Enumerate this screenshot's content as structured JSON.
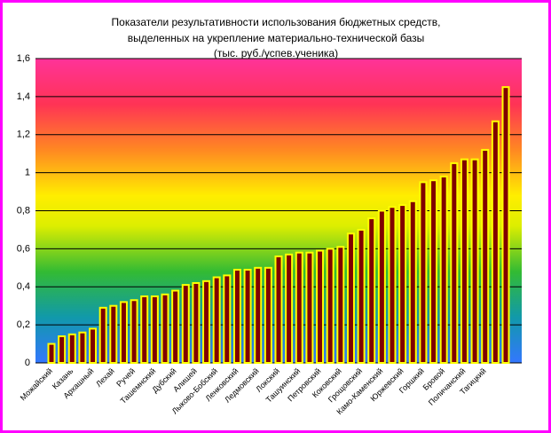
{
  "chart_data": {
    "type": "bar",
    "title": [
      "Показатели результативности использования бюджетных средств,",
      "выделенных на укрепление материально-технической базы",
      "(тыс. руб./успев.ученика)"
    ],
    "categories": [
      "Можайский",
      null,
      "Казань",
      null,
      "Архашный",
      null,
      "Лехай",
      null,
      "Ручей",
      null,
      "Ташемнский",
      null,
      "Дубский",
      null,
      "Алишей",
      null,
      "Лыково-Бобский",
      null,
      "Ленковский",
      null,
      "Ледмовский",
      null,
      "Локский",
      null,
      "Ташуинский",
      null,
      "Петровский",
      null,
      "Коковский",
      null,
      "Грощовский",
      null,
      "Камо-Каменский",
      null,
      "Юржевский",
      null,
      "Горшкий",
      null,
      "Бровой",
      null,
      "Поличанский",
      null,
      "Тагицкий",
      null,
      null
    ],
    "values": [
      0.1,
      0.14,
      0.15,
      0.16,
      0.18,
      0.29,
      0.3,
      0.32,
      0.33,
      0.35,
      0.35,
      0.36,
      0.38,
      0.41,
      0.42,
      0.43,
      0.45,
      0.46,
      0.49,
      0.49,
      0.5,
      0.5,
      0.56,
      0.57,
      0.58,
      0.58,
      0.59,
      0.6,
      0.61,
      0.68,
      0.7,
      0.76,
      0.8,
      0.82,
      0.83,
      0.85,
      0.95,
      0.96,
      0.98,
      1.05,
      1.07,
      1.07,
      1.12,
      1.27,
      1.45
    ],
    "color": "#800000",
    "edge_color": "#ffff00",
    "ylim": [
      0,
      1.6
    ],
    "yticks": [
      0,
      {
        "value": 0.2,
        "label": "0,2"
      },
      {
        "value": 0.4,
        "label": "0,4"
      },
      {
        "value": 0.6,
        "label": "0,6"
      },
      {
        "value": 0.8,
        "label": "0,8"
      },
      1,
      {
        "value": 1.2,
        "label": "1,2"
      },
      {
        "value": 1.4,
        "label": "1,4"
      },
      {
        "value": 1.6,
        "label": "1,6"
      }
    ],
    "grid": true
  }
}
